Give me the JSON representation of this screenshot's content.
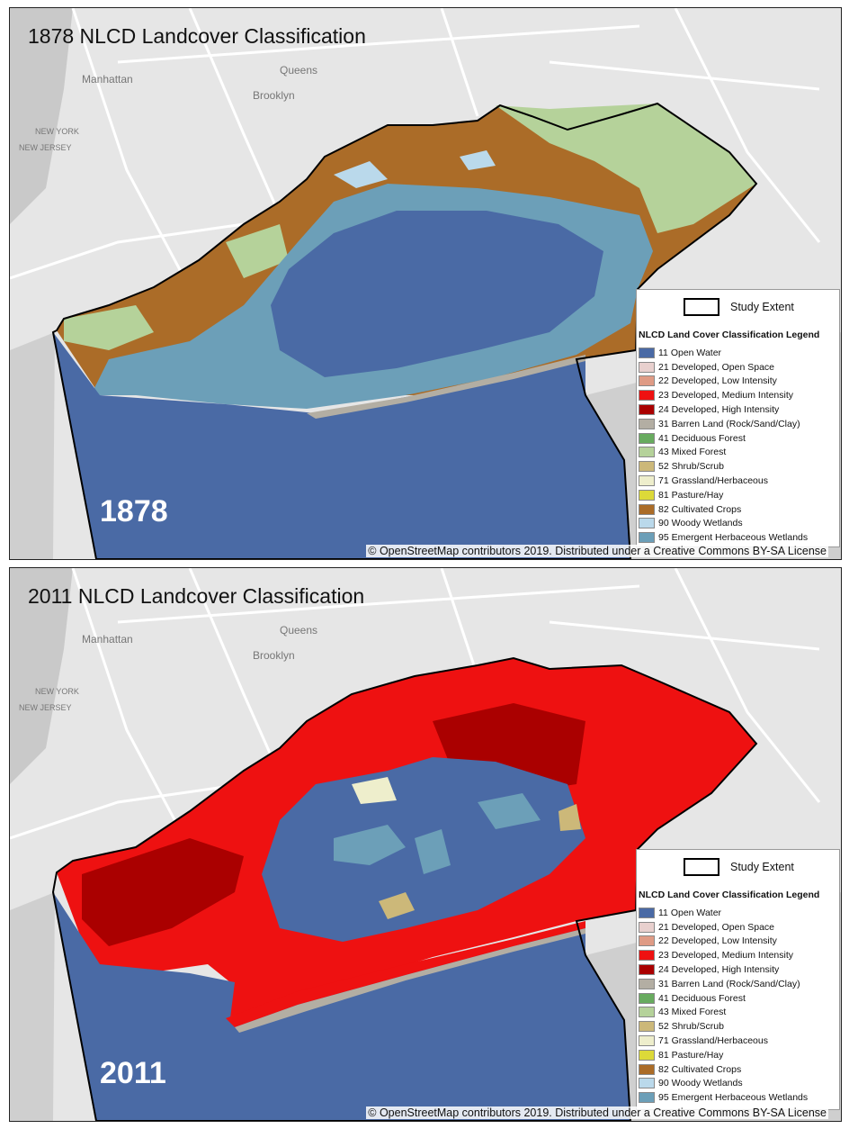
{
  "panels": [
    {
      "title": "1878 NLCD Landcover Classification",
      "year": "1878"
    },
    {
      "title": "2011 NLCD Landcover Classification",
      "year": "2011"
    }
  ],
  "places": {
    "manhattan": "Manhattan",
    "queens": "Queens",
    "brooklyn": "Brooklyn",
    "new_jersey": "NEW JERSEY",
    "new_york": "NEW YORK"
  },
  "legend": {
    "extent_label": "Study Extent",
    "title": "NLCD Land Cover Classification Legend",
    "items": [
      {
        "label": "11 Open Water",
        "color": "#4a6aa5"
      },
      {
        "label": "21 Developed, Open Space",
        "color": "#e8d0ce"
      },
      {
        "label": "22 Developed, Low Intensity",
        "color": "#df9b85"
      },
      {
        "label": "23 Developed, Medium Intensity",
        "color": "#ee1111"
      },
      {
        "label": "24 Developed, High Intensity",
        "color": "#aa0000"
      },
      {
        "label": "31 Barren Land (Rock/Sand/Clay)",
        "color": "#b3aea3"
      },
      {
        "label": "41 Deciduous Forest",
        "color": "#68ab5f"
      },
      {
        "label": "43 Mixed Forest",
        "color": "#b5d29a"
      },
      {
        "label": "52 Shrub/Scrub",
        "color": "#ccb879"
      },
      {
        "label": "71 Grassland/Herbaceous",
        "color": "#eeeecc"
      },
      {
        "label": "81 Pasture/Hay",
        "color": "#dcd939"
      },
      {
        "label": "82 Cultivated Crops",
        "color": "#ab6c28"
      },
      {
        "label": "90 Woody Wetlands",
        "color": "#bad9eb"
      },
      {
        "label": "95 Emergent Herbaceous Wetlands",
        "color": "#6c9fb8"
      }
    ]
  },
  "attribution": "© OpenStreetMap contributors 2019. Distributed under a Creative Commons BY-SA License"
}
